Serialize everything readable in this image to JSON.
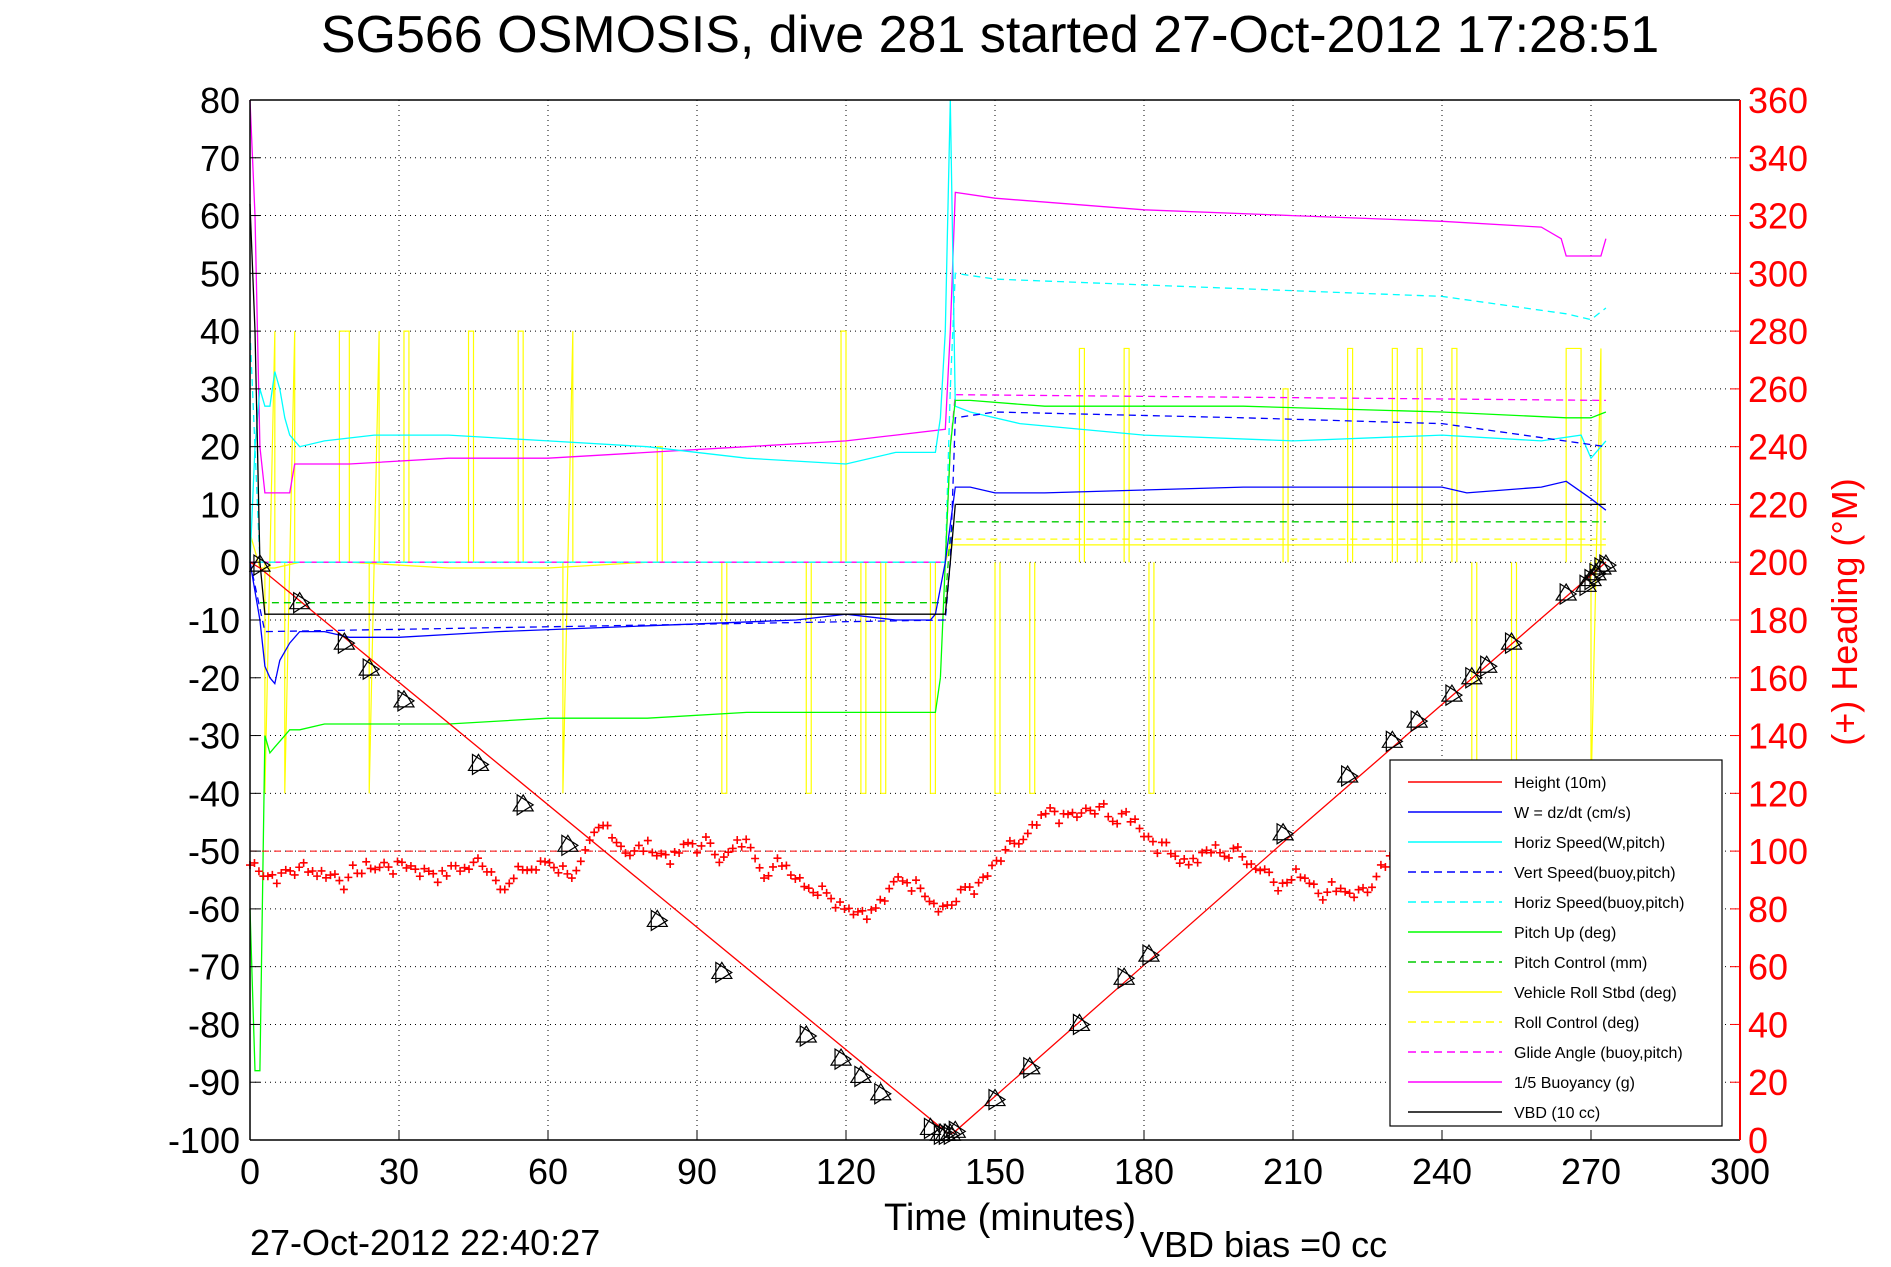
{
  "chart_data": {
    "type": "line",
    "title": "SG566 OSMOSIS, dive 281 started 27-Oct-2012 17:28:51",
    "xlabel": "Time (minutes)",
    "ylabel_right": "(+) Heading (°M)",
    "footer_left": "27-Oct-2012 22:40:27",
    "footer_right": "VBD bias =0 cc",
    "xlim": [
      0,
      300
    ],
    "ylim": [
      -100,
      80
    ],
    "y2lim": [
      0,
      360
    ],
    "grid": true,
    "legend_position": "bottom-right",
    "x_ticks": [
      "0",
      "30",
      "60",
      "90",
      "120",
      "150",
      "180",
      "210",
      "240",
      "270",
      "300"
    ],
    "y_ticks": [
      "80",
      "70",
      "60",
      "50",
      "40",
      "30",
      "20",
      "10",
      "0",
      "-10",
      "-20",
      "-30",
      "-40",
      "-50",
      "-60",
      "-70",
      "-80",
      "-90",
      "-100"
    ],
    "y2_ticks": [
      "360",
      "340",
      "320",
      "300",
      "280",
      "260",
      "240",
      "220",
      "200",
      "180",
      "160",
      "140",
      "120",
      "100",
      "80",
      "60",
      "40",
      "20",
      "0"
    ],
    "colors": {
      "height": "#ff0000",
      "w": "#0000ff",
      "horiz_speed": "#00ffff",
      "vert_speed_model": "#0000ff",
      "horiz_speed_model": "#00ffff",
      "pitch": "#00ff00",
      "pitch_control": "#00cc00",
      "roll": "#ffff00",
      "roll_control": "#ffff00",
      "glide_angle": "#ff00ff",
      "buoyancy": "#ff00ff",
      "vbd": "#000000",
      "heading": "#ff0000",
      "axis_right": "#ff0000"
    },
    "legend": [
      {
        "label": "Height (10m)",
        "color": "#ff0000",
        "dash": false
      },
      {
        "label": "W = dz/dt (cm/s)",
        "color": "#0000ff",
        "dash": false
      },
      {
        "label": "Horiz Speed(W,pitch)",
        "color": "#00ffff",
        "dash": false
      },
      {
        "label": "Vert Speed(buoy,pitch)",
        "color": "#0000ff",
        "dash": true
      },
      {
        "label": "Horiz Speed(buoy,pitch)",
        "color": "#00ffff",
        "dash": true
      },
      {
        "label": "Pitch Up (deg)",
        "color": "#00ff00",
        "dash": false
      },
      {
        "label": "Pitch Control (mm)",
        "color": "#00cc00",
        "dash": true
      },
      {
        "label": "Vehicle Roll Stbd (deg)",
        "color": "#ffff00",
        "dash": false
      },
      {
        "label": "Roll Control (deg)",
        "color": "#ffff00",
        "dash": true
      },
      {
        "label": "Glide Angle (buoy,pitch)",
        "color": "#ff00ff",
        "dash": true
      },
      {
        "label": "1/5 Buoyancy (g)",
        "color": "#ff00ff",
        "dash": false
      },
      {
        "label": "VBD (10 cc)",
        "color": "#000000",
        "dash": false
      }
    ],
    "series": {
      "height": {
        "x": [
          0,
          2,
          140,
          141,
          142,
          210,
          273
        ],
        "y": [
          0,
          -1,
          -98.5,
          -99,
          -98.5,
          -47,
          0
        ]
      },
      "height_markers": {
        "x": [
          2,
          10,
          19,
          24,
          31,
          46,
          55,
          64,
          82,
          95,
          112,
          119,
          123,
          127,
          137,
          139,
          140,
          141,
          142,
          150,
          157,
          167,
          176,
          181,
          208,
          221,
          230,
          235,
          242,
          246,
          249,
          254,
          265,
          269,
          270,
          271,
          272,
          273
        ],
        "y": [
          -0.5,
          -7,
          -14,
          -18.5,
          -24,
          -35,
          -42,
          -49,
          -62,
          -71,
          -82,
          -86,
          -89,
          -92,
          -98,
          -99,
          -99,
          -99,
          -98.5,
          -93,
          -87.5,
          -80,
          -72,
          -68,
          -47,
          -37,
          -31,
          -27.5,
          -23,
          -20,
          -18,
          -14,
          -5.5,
          -4,
          -3,
          -2,
          -1,
          -0.5
        ]
      },
      "w": {
        "x": [
          0,
          2,
          3,
          4,
          5,
          6,
          8,
          10,
          15,
          20,
          30,
          50,
          80,
          110,
          120,
          130,
          137,
          138,
          140,
          142,
          145,
          150,
          160,
          200,
          240,
          245,
          260,
          265,
          270,
          273
        ],
        "y": [
          0,
          -10,
          -18,
          -20,
          -21,
          -17,
          -14,
          -12,
          -12,
          -13,
          -13,
          -12,
          -11,
          -10,
          -9,
          -10,
          -10,
          -9,
          0,
          13,
          13,
          12,
          12,
          13,
          13,
          12,
          13,
          14,
          11,
          9
        ]
      },
      "horiz_speed": {
        "x": [
          0,
          1,
          2,
          3,
          4,
          5,
          6,
          7,
          8,
          10,
          15,
          25,
          40,
          60,
          80,
          100,
          120,
          130,
          138,
          139,
          140,
          141,
          142,
          145,
          155,
          180,
          210,
          240,
          260,
          268,
          270,
          273
        ],
        "y": [
          0,
          20,
          30,
          27,
          27,
          33,
          30,
          25,
          22,
          20,
          21,
          22,
          22,
          21,
          20,
          18,
          17,
          19,
          19,
          25,
          40,
          80,
          27,
          26,
          24,
          22,
          21,
          22,
          21,
          22,
          18,
          21
        ]
      },
      "vert_speed_model": {
        "x": [
          0,
          3,
          140,
          141,
          142,
          150,
          200,
          240,
          273
        ],
        "y": [
          0,
          -12,
          -10,
          0,
          25,
          26,
          25,
          24,
          20
        ]
      },
      "horiz_speed_model": {
        "x": [
          0,
          2,
          140,
          141,
          142,
          150,
          180,
          210,
          240,
          265,
          270,
          273
        ],
        "y": [
          40,
          0,
          0,
          30,
          50,
          49,
          48,
          47,
          46,
          43,
          42,
          44
        ]
      },
      "pitch": {
        "x": [
          0,
          1,
          2,
          3,
          4,
          5,
          6,
          7,
          8,
          10,
          15,
          25,
          40,
          60,
          80,
          100,
          120,
          130,
          138,
          139,
          140,
          141,
          142,
          145,
          160,
          200,
          240,
          265,
          270,
          273
        ],
        "y": [
          -60,
          -88,
          -88,
          -30,
          -33,
          -32,
          -31,
          -30,
          -29,
          -29,
          -28,
          -28,
          -28,
          -27,
          -27,
          -26,
          -26,
          -26,
          -26,
          -20,
          0,
          20,
          28,
          28,
          27,
          27,
          26,
          25,
          25,
          26
        ]
      },
      "pitch_control": {
        "x": [
          2,
          140,
          141,
          142,
          273
        ],
        "y": [
          -7,
          -7,
          5,
          7,
          7
        ]
      },
      "roll": {
        "x": [
          0,
          2,
          5,
          10,
          20,
          40,
          60,
          80,
          100,
          120,
          140,
          141,
          142,
          160,
          200,
          240,
          270,
          273
        ],
        "y": [
          5,
          -1,
          -1,
          0,
          0,
          -1,
          -1,
          0,
          0,
          0,
          0,
          3,
          3,
          3,
          3,
          3,
          3,
          3
        ]
      },
      "roll_control": {
        "x": [
          0,
          2,
          140,
          141,
          142,
          273
        ],
        "y": [
          0,
          0,
          0,
          3,
          4,
          4
        ]
      },
      "glide_angle": {
        "x": [
          0,
          2,
          140,
          141,
          142,
          273
        ],
        "y": [
          0,
          0,
          0,
          20,
          29,
          28
        ]
      },
      "buoyancy": {
        "x": [
          0,
          1,
          2,
          3,
          8,
          9,
          20,
          40,
          60,
          80,
          100,
          120,
          130,
          140,
          141,
          142,
          150,
          180,
          210,
          240,
          260,
          264,
          265,
          270,
          272,
          273
        ],
        "y": [
          80,
          60,
          20,
          12,
          12,
          17,
          17,
          18,
          18,
          19,
          20,
          21,
          22,
          23,
          40,
          64,
          63,
          61,
          60,
          59,
          58,
          56,
          53,
          53,
          53,
          56
        ]
      },
      "vbd": {
        "x": [
          0,
          1,
          2,
          3,
          140,
          141,
          142,
          143,
          273
        ],
        "y": [
          62,
          40,
          0,
          -9,
          -9,
          0,
          10,
          10,
          10
        ]
      },
      "heading_ref": {
        "x": [
          0,
          273
        ],
        "y": [
          100,
          100
        ]
      }
    },
    "roll_spikes": [
      {
        "x": [
          3,
          5
        ],
        "y": [
          -40,
          40
        ]
      },
      {
        "x": [
          7,
          9
        ],
        "y": [
          -40,
          40
        ]
      },
      {
        "x": [
          18,
          20
        ],
        "y": [
          40,
          40
        ]
      },
      {
        "x": [
          24,
          26
        ],
        "y": [
          -40,
          40
        ]
      },
      {
        "x": [
          31,
          32
        ],
        "y": [
          40,
          40
        ]
      },
      {
        "x": [
          44,
          45
        ],
        "y": [
          40,
          40
        ]
      },
      {
        "x": [
          54,
          55
        ],
        "y": [
          40,
          40
        ]
      },
      {
        "x": [
          63,
          65
        ],
        "y": [
          -40,
          40
        ]
      },
      {
        "x": [
          82,
          83
        ],
        "y": [
          20,
          20
        ]
      },
      {
        "x": [
          95,
          96
        ],
        "y": [
          -40,
          -40
        ]
      },
      {
        "x": [
          112,
          113
        ],
        "y": [
          -40,
          -40
        ]
      },
      {
        "x": [
          119,
          120
        ],
        "y": [
          40,
          40
        ]
      },
      {
        "x": [
          123,
          124
        ],
        "y": [
          -40,
          -40
        ]
      },
      {
        "x": [
          127,
          128
        ],
        "y": [
          -40,
          -40
        ]
      },
      {
        "x": [
          137,
          138
        ],
        "y": [
          -40,
          -40
        ]
      },
      {
        "x": [
          150,
          151
        ],
        "y": [
          -40,
          -40
        ]
      },
      {
        "x": [
          157,
          158
        ],
        "y": [
          -40,
          -40
        ]
      },
      {
        "x": [
          167,
          168
        ],
        "y": [
          37,
          37
        ]
      },
      {
        "x": [
          176,
          177
        ],
        "y": [
          37,
          37
        ]
      },
      {
        "x": [
          181,
          182
        ],
        "y": [
          -40,
          -40
        ]
      },
      {
        "x": [
          208,
          209
        ],
        "y": [
          30,
          30
        ]
      },
      {
        "x": [
          221,
          222
        ],
        "y": [
          37,
          37
        ]
      },
      {
        "x": [
          230,
          231
        ],
        "y": [
          37,
          37
        ]
      },
      {
        "x": [
          235,
          236
        ],
        "y": [
          37,
          37
        ]
      },
      {
        "x": [
          242,
          243
        ],
        "y": [
          37,
          37
        ]
      },
      {
        "x": [
          246,
          247
        ],
        "y": [
          -40,
          -40
        ]
      },
      {
        "x": [
          254,
          255
        ],
        "y": [
          -40,
          -40
        ]
      },
      {
        "x": [
          265,
          268
        ],
        "y": [
          37,
          37
        ]
      },
      {
        "x": [
          270,
          272
        ],
        "y": [
          -40,
          37
        ]
      }
    ]
  }
}
